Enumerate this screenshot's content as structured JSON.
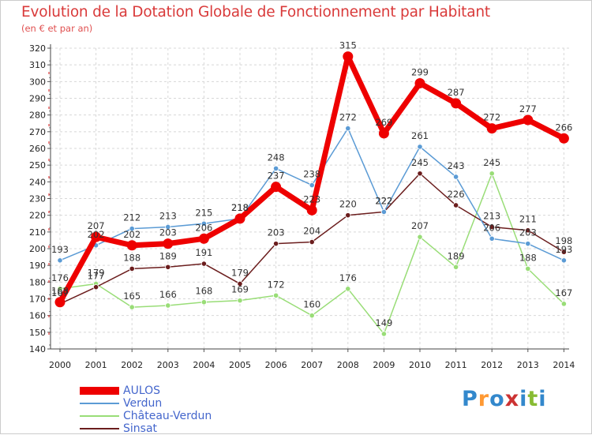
{
  "colors": {
    "AULOS": "#ee0000",
    "Verdun": "#5b9bd5",
    "Château-Verdun": "#99dd77",
    "Sinsat": "#6b1d1d"
  },
  "chart_data": {
    "type": "line",
    "title": "Evolution de la Dotation Globale de Fonctionnement par Habitant",
    "subtitle": "(en € et par an)",
    "xlabel": "",
    "ylabel": "",
    "x": [
      "2000",
      "2001",
      "2002",
      "2003",
      "2004",
      "2005",
      "2006",
      "2007",
      "2008",
      "2009",
      "2010",
      "2011",
      "2012",
      "2013",
      "2014"
    ],
    "ylim": [
      140,
      320
    ],
    "yticks": [
      140,
      150,
      160,
      170,
      180,
      190,
      200,
      210,
      220,
      230,
      240,
      250,
      260,
      270,
      280,
      290,
      300,
      310,
      320
    ],
    "series": [
      {
        "name": "AULOS",
        "values": [
          168,
          207,
          202,
          203,
          206,
          218,
          237,
          223,
          315,
          269,
          299,
          287,
          272,
          277,
          266
        ]
      },
      {
        "name": "Verdun",
        "values": [
          193,
          202,
          212,
          213,
          215,
          218,
          248,
          238,
          272,
          222,
          261,
          243,
          206,
          203,
          193
        ]
      },
      {
        "name": "Château-Verdun",
        "values": [
          176,
          179,
          165,
          166,
          168,
          169,
          172,
          160,
          176,
          149,
          207,
          189,
          245,
          188,
          167
        ]
      },
      {
        "name": "Sinsat",
        "values": [
          167,
          177,
          188,
          189,
          191,
          179,
          203,
          204,
          220,
          222,
          245,
          226,
          213,
          211,
          198
        ]
      }
    ],
    "legend_position": "bottom-left"
  },
  "logo": {
    "letters": [
      "P",
      "r",
      "o",
      "x",
      "i",
      "t",
      "i"
    ],
    "colors": [
      "#3388cc",
      "#ff9933",
      "#3388cc",
      "#cc3333",
      "#3388cc",
      "#88bb33",
      "#3388cc"
    ]
  }
}
